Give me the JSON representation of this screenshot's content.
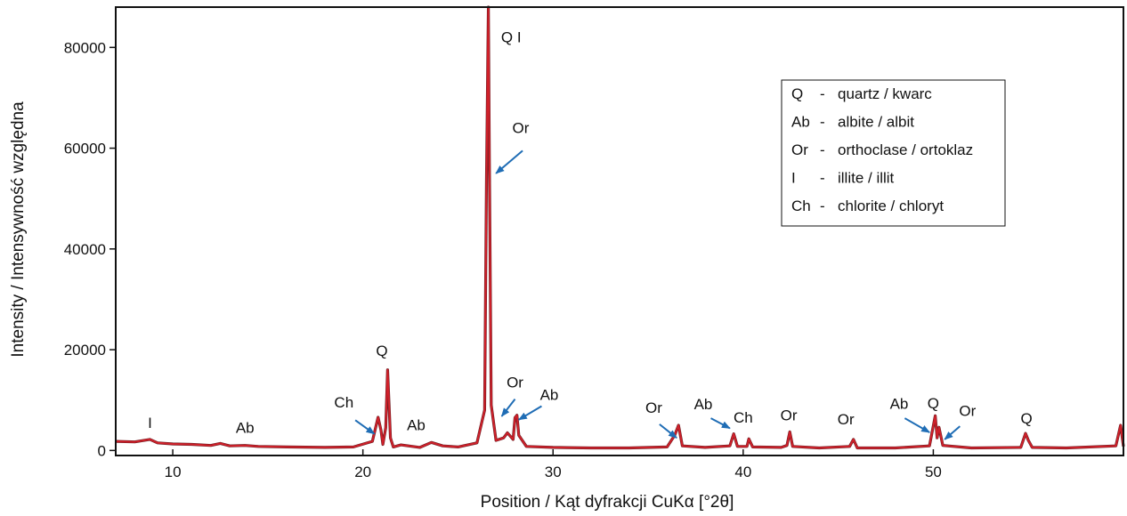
{
  "chart_data": {
    "type": "line",
    "xlabel": "Position / Kąt dyfrakcji CuKα [°2θ]",
    "ylabel": "Intensity / Intensywność względna",
    "xlim": [
      7,
      60
    ],
    "ylim": [
      -1000,
      88000
    ],
    "x_ticks": [
      10,
      20,
      30,
      40,
      50
    ],
    "y_ticks": [
      0,
      20000,
      40000,
      60000,
      80000
    ],
    "x_tick_labels": [
      "10",
      "20",
      "30",
      "40",
      "50"
    ],
    "y_tick_labels": [
      "0",
      "20000",
      "40000",
      "60000",
      "80000"
    ],
    "grid": false,
    "colors": {
      "pattern": "#d0202a",
      "baseline": "#6b1d22",
      "arrow": "#1f6db5",
      "frame": "#111111"
    },
    "series": [
      {
        "values": [
          [
            7.0,
            1800
          ],
          [
            8.0,
            1700
          ],
          [
            8.8,
            2200
          ],
          [
            9.2,
            1500
          ],
          [
            10.0,
            1300
          ],
          [
            11.0,
            1200
          ],
          [
            12.0,
            1000
          ],
          [
            12.5,
            1400
          ],
          [
            13.0,
            900
          ],
          [
            13.8,
            1000
          ],
          [
            14.5,
            800
          ],
          [
            16.0,
            700
          ],
          [
            18.0,
            600
          ],
          [
            19.5,
            700
          ],
          [
            20.5,
            1800
          ],
          [
            20.8,
            6600
          ],
          [
            20.95,
            4000
          ],
          [
            21.05,
            1200
          ],
          [
            21.2,
            4500
          ],
          [
            21.3,
            16000
          ],
          [
            21.45,
            2500
          ],
          [
            21.6,
            700
          ],
          [
            22.0,
            1100
          ],
          [
            23.0,
            600
          ],
          [
            23.6,
            1600
          ],
          [
            24.2,
            900
          ],
          [
            25.0,
            700
          ],
          [
            26.0,
            1500
          ],
          [
            26.4,
            8000
          ],
          [
            26.5,
            54000
          ],
          [
            26.6,
            88000
          ],
          [
            26.65,
            58000
          ],
          [
            26.75,
            9000
          ],
          [
            27.0,
            2000
          ],
          [
            27.4,
            2500
          ],
          [
            27.6,
            3500
          ],
          [
            27.9,
            2200
          ],
          [
            28.0,
            6500
          ],
          [
            28.1,
            7000
          ],
          [
            28.2,
            3000
          ],
          [
            28.6,
            800
          ],
          [
            30.0,
            600
          ],
          [
            32.0,
            500
          ],
          [
            34.0,
            500
          ],
          [
            36.0,
            700
          ],
          [
            36.4,
            3000
          ],
          [
            36.6,
            5000
          ],
          [
            36.8,
            900
          ],
          [
            38.0,
            600
          ],
          [
            39.3,
            900
          ],
          [
            39.5,
            3300
          ],
          [
            39.7,
            800
          ],
          [
            40.2,
            800
          ],
          [
            40.3,
            2300
          ],
          [
            40.5,
            700
          ],
          [
            42.0,
            600
          ],
          [
            42.3,
            1000
          ],
          [
            42.45,
            3700
          ],
          [
            42.6,
            800
          ],
          [
            44.0,
            500
          ],
          [
            45.6,
            800
          ],
          [
            45.8,
            2200
          ],
          [
            46.0,
            500
          ],
          [
            48.0,
            500
          ],
          [
            49.8,
            900
          ],
          [
            50.1,
            6900
          ],
          [
            50.2,
            2500
          ],
          [
            50.3,
            4600
          ],
          [
            50.5,
            1000
          ],
          [
            52.0,
            500
          ],
          [
            54.6,
            600
          ],
          [
            54.85,
            3400
          ],
          [
            55.0,
            2000
          ],
          [
            55.2,
            600
          ],
          [
            57.0,
            500
          ],
          [
            59.6,
            900
          ],
          [
            59.85,
            5000
          ],
          [
            60.0,
            800
          ]
        ]
      }
    ],
    "peak_labels": [
      {
        "text": "I",
        "x": 8.8,
        "y": 4500
      },
      {
        "text": "Ab",
        "x": 13.8,
        "y": 3500
      },
      {
        "text": "Ch",
        "x": 19.0,
        "y": 8500
      },
      {
        "text": "Q",
        "x": 21.0,
        "y": 18800
      },
      {
        "text": "Ab",
        "x": 22.8,
        "y": 4000
      },
      {
        "text": "Q I",
        "x": 27.8,
        "y": 81000
      },
      {
        "text": "Or",
        "x": 28.3,
        "y": 63000
      },
      {
        "text": "Or",
        "x": 28.0,
        "y": 12500
      },
      {
        "text": "Ab",
        "x": 29.8,
        "y": 10000
      },
      {
        "text": "Or",
        "x": 35.3,
        "y": 7500
      },
      {
        "text": "Ab",
        "x": 37.9,
        "y": 8200
      },
      {
        "text": "Ch",
        "x": 40.0,
        "y": 5500
      },
      {
        "text": "Or",
        "x": 42.4,
        "y": 6000
      },
      {
        "text": "Or",
        "x": 45.4,
        "y": 5200
      },
      {
        "text": "Ab",
        "x": 48.2,
        "y": 8300
      },
      {
        "text": "Q",
        "x": 50.0,
        "y": 8400
      },
      {
        "text": "Or",
        "x": 51.8,
        "y": 6900
      },
      {
        "text": "Q",
        "x": 54.9,
        "y": 5400
      }
    ],
    "arrows": [
      {
        "from": [
          19.6,
          6000
        ],
        "to": [
          20.6,
          3300
        ]
      },
      {
        "from": [
          28.4,
          59500
        ],
        "to": [
          27.0,
          55000
        ]
      },
      {
        "from": [
          28.0,
          10200
        ],
        "to": [
          27.3,
          6800
        ]
      },
      {
        "from": [
          29.4,
          8800
        ],
        "to": [
          28.2,
          6100
        ]
      },
      {
        "from": [
          35.6,
          5200
        ],
        "to": [
          36.5,
          2500
        ]
      },
      {
        "from": [
          38.3,
          6400
        ],
        "to": [
          39.3,
          4400
        ]
      },
      {
        "from": [
          48.5,
          6400
        ],
        "to": [
          49.8,
          3600
        ]
      },
      {
        "from": [
          51.4,
          4800
        ],
        "to": [
          50.6,
          2200
        ]
      }
    ],
    "legend": {
      "placement": "top-right",
      "entries": [
        {
          "code": "Q",
          "dash": "-",
          "name": "quartz / kwarc"
        },
        {
          "code": "Ab",
          "dash": "-",
          "name": "albite / albit"
        },
        {
          "code": "Or",
          "dash": "-",
          "name": "orthoclase / ortoklaz"
        },
        {
          "code": "I",
          "dash": "-",
          "name": "illite / illit"
        },
        {
          "code": "Ch",
          "dash": "-",
          "name": "chlorite / chloryt"
        }
      ]
    }
  }
}
